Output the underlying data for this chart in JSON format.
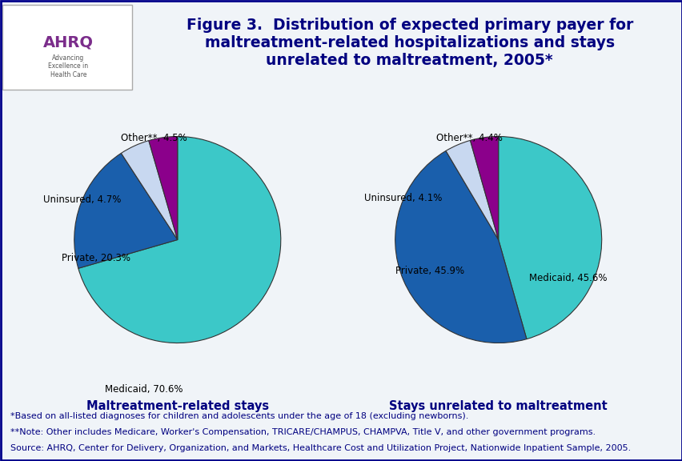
{
  "title": "Figure 3.  Distribution of expected primary payer for\nmaltreatment-related hospitalizations and stays\nunrelated to maltreatment, 2005*",
  "title_color": "#000080",
  "bg_color": "#f0f4f8",
  "header_bg": "#f0f4f8",
  "chart_bg": "#f0f4f8",
  "border_color": "#00008B",
  "pie1_values": [
    70.6,
    20.3,
    4.7,
    4.5
  ],
  "pie1_labels": [
    "Medicaid, 70.6%",
    "Private, 20.3%",
    "Uninsured, 4.7%",
    "Other**, 4.5%"
  ],
  "pie1_colors": [
    "#3cc8c8",
    "#1a5fac",
    "#c8d8f0",
    "#8b008b"
  ],
  "pie1_title": "Maltreatment-related stays",
  "pie1_startangle": 90,
  "pie2_values": [
    45.6,
    45.9,
    4.1,
    4.4
  ],
  "pie2_labels": [
    "Medicaid, 45.6%",
    "Private, 45.9%",
    "Uninsured, 4.1%",
    "Other**, 4.4%"
  ],
  "pie2_colors": [
    "#3cc8c8",
    "#1a5fac",
    "#c8d8f0",
    "#8b008b"
  ],
  "pie2_title": "Stays unrelated to maltreatment",
  "pie2_startangle": 90,
  "footnote1": "*Based on all-listed diagnoses for children and adolescents under the age of 18 (excluding newborns).",
  "footnote2": "**Note: Other includes Medicare, Worker's Compensation, TRICARE/CHAMPUS, CHAMPVA, Title V, and other government programs.",
  "footnote3": "Source: AHRQ, Center for Delivery, Organization, and Markets, Healthcare Cost and Utilization Project, Nationwide Inpatient Sample, 2005.",
  "footnote_color": "#000080",
  "footnote_fontsize": 8.0,
  "label_fontsize": 8.5,
  "pie_title_fontsize": 10.5,
  "title_fontsize": 13.5,
  "label_color": "#000000"
}
